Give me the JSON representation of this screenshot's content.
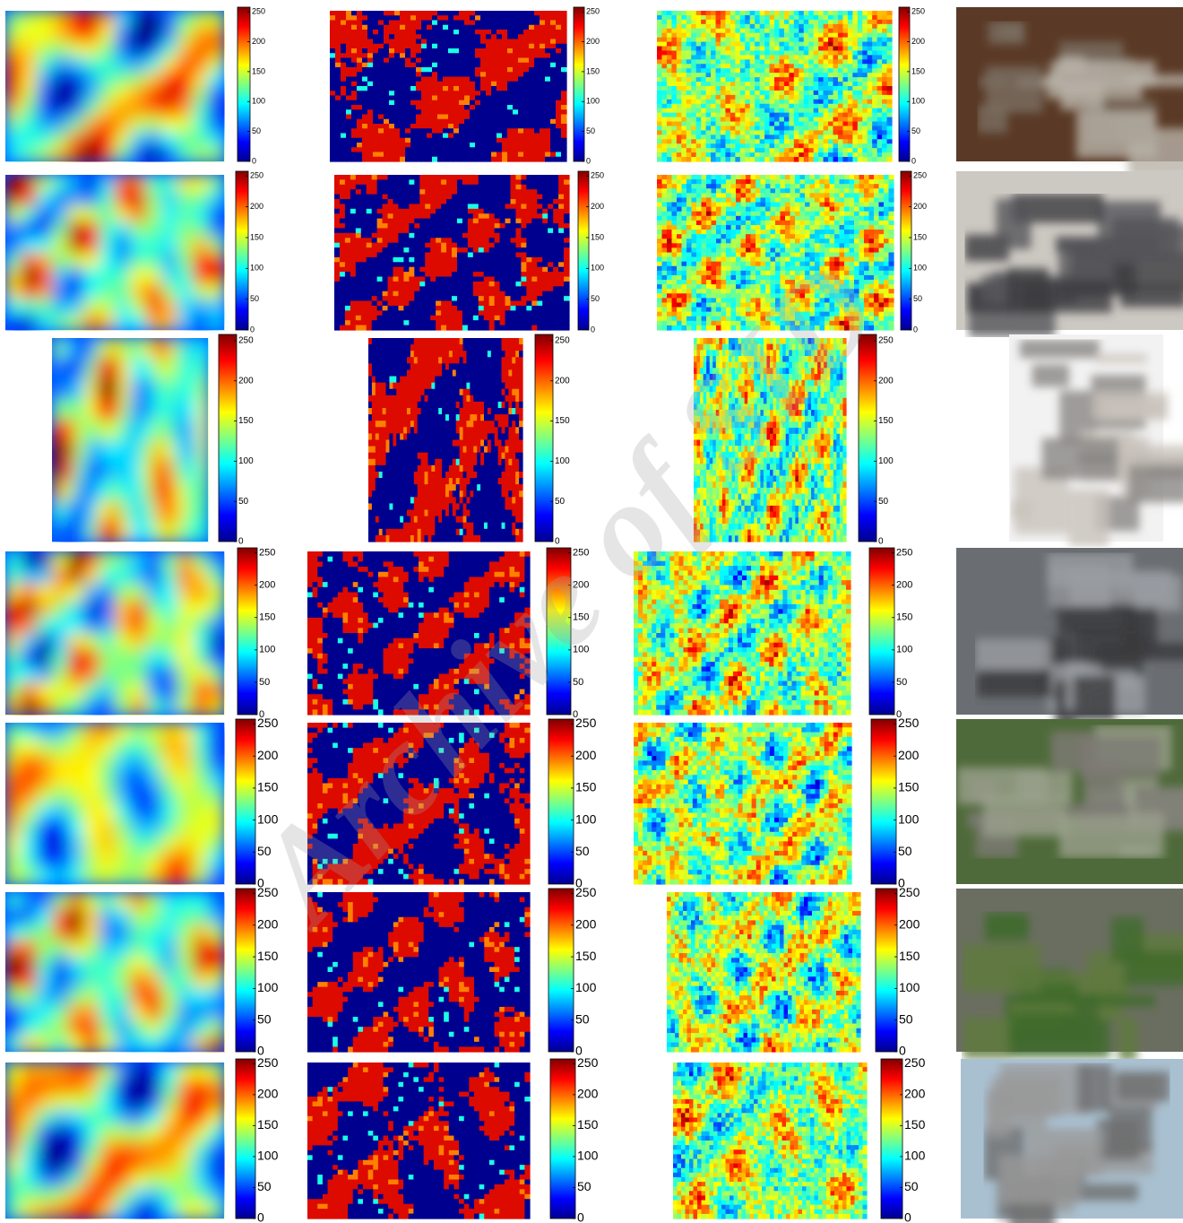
{
  "figure": {
    "colorbar_ticks": [
      0,
      50,
      100,
      150,
      200,
      250
    ],
    "watermark": "Archive of SID"
  }
}
